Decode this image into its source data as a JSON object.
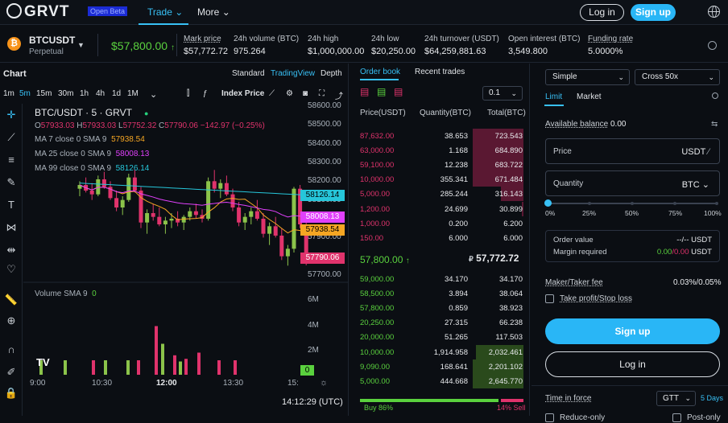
{
  "header": {
    "logo_text": "GRVT",
    "beta_badge": "Open Beta",
    "nav": [
      {
        "label": "Trade"
      },
      {
        "label": "More"
      }
    ],
    "login_label": "Log in",
    "signup_label": "Sign up"
  },
  "ticker": {
    "symbol": "BTCUSDT",
    "market_type": "Perpetual",
    "last_price": "$57,800.00",
    "stats": [
      {
        "label": "Mark price",
        "value": "$57,772.72"
      },
      {
        "label": "24h volume (BTC)",
        "value": "975.264"
      },
      {
        "label": "24h high",
        "value": "$1,000,000.00"
      },
      {
        "label": "24h low",
        "value": "$20,250.00"
      },
      {
        "label": "24h turnover (USDT)",
        "value": "$64,259,881.63"
      },
      {
        "label": "Open interest (BTC)",
        "value": "3,549.800"
      },
      {
        "label": "Funding rate",
        "value": "5.0000%"
      }
    ]
  },
  "chart_panel": {
    "title": "Chart",
    "views": [
      "Standard",
      "TradingView",
      "Depth"
    ],
    "active_view": "TradingView",
    "timeframes": [
      "1m",
      "5m",
      "15m",
      "30m",
      "1h",
      "4h",
      "1d",
      "1M"
    ],
    "active_timeframe": "5m",
    "index_price_label": "Index Price",
    "instrument_line": "BTC/USDT · 5 · GRVT",
    "ohlc": {
      "o": "57933.03",
      "h": "57933.03",
      "l": "57752.32",
      "c": "57790.06",
      "change": "−142.97 (−0.25%)"
    },
    "ma_lines": [
      {
        "label": "MA 7 close 0 SMA 9",
        "value": "57938.54",
        "color": "#f5a623"
      },
      {
        "label": "MA 25 close 0 SMA 9",
        "value": "58008.13",
        "color": "#e040fb"
      },
      {
        "label": "MA 99 close 0 SMA 9",
        "value": "58126.14",
        "color": "#26c6da"
      }
    ],
    "price_axis": [
      "58600.00",
      "58500.00",
      "58400.00",
      "58300.00",
      "58200.00",
      "58100.00",
      "58000.00",
      "57900.00",
      "57800.00",
      "57700.00"
    ],
    "price_tags": [
      {
        "value": "58126.14",
        "color": "#26c6da"
      },
      {
        "value": "58008.13",
        "color": "#e040fb"
      },
      {
        "value": "57938.54",
        "color": "#f5a623"
      },
      {
        "value": "57790.06",
        "color": "#e0336c"
      }
    ],
    "volume_label": "Volume SMA 9",
    "volume_value": "0",
    "volume_axis": [
      "6M",
      "4M",
      "2M"
    ],
    "volume_tag": "0",
    "time_axis": [
      "9:00",
      "10:30",
      "12:00",
      "13:30",
      "15:"
    ],
    "clock": "14:12:29 (UTC)",
    "tv_logo": "TV"
  },
  "chart_data": {
    "type": "candlestick",
    "title": "BTC/USDT · 5 · GRVT",
    "ylim": [
      57700,
      58600
    ],
    "ohlc_last": {
      "open": 57933.03,
      "high": 57933.03,
      "low": 57752.32,
      "close": 57790.06
    },
    "moving_averages": [
      {
        "name": "MA 7",
        "last": 57938.54
      },
      {
        "name": "MA 25",
        "last": 58008.13
      },
      {
        "name": "MA 99",
        "last": 58126.14
      }
    ],
    "candles": [
      [
        58160,
        58200,
        58120,
        58180
      ],
      [
        58180,
        58220,
        58140,
        58150
      ],
      [
        58150,
        58190,
        58100,
        58130
      ],
      [
        58130,
        58230,
        58120,
        58210
      ],
      [
        58210,
        58250,
        58160,
        58170
      ],
      [
        58170,
        58200,
        58100,
        58110
      ],
      [
        58110,
        58150,
        58040,
        58060
      ],
      [
        58060,
        58120,
        58020,
        58100
      ],
      [
        58100,
        58240,
        58090,
        58220
      ],
      [
        58220,
        58260,
        58140,
        58150
      ],
      [
        58150,
        58170,
        57950,
        57980
      ],
      [
        57980,
        58050,
        57920,
        58030
      ],
      [
        58030,
        58080,
        57990,
        58010
      ],
      [
        58010,
        58060,
        57960,
        57970
      ],
      [
        57970,
        58010,
        57920,
        57990
      ],
      [
        57990,
        58030,
        57950,
        58000
      ],
      [
        58000,
        58040,
        57960,
        57980
      ],
      [
        57980,
        58020,
        57940,
        58010
      ],
      [
        58010,
        58060,
        57990,
        58040
      ],
      [
        58040,
        58080,
        58000,
        58020
      ],
      [
        58020,
        58050,
        57980,
        58000
      ],
      [
        58000,
        58220,
        57990,
        58200
      ],
      [
        58200,
        58260,
        58140,
        58160
      ],
      [
        58160,
        58210,
        58110,
        58190
      ],
      [
        58190,
        58230,
        58120,
        58130
      ],
      [
        58130,
        58160,
        58040,
        58060
      ],
      [
        58060,
        58090,
        57960,
        57980
      ],
      [
        57980,
        58030,
        57940,
        58010
      ],
      [
        58010,
        58060,
        57970,
        58040
      ],
      [
        58040,
        58100,
        57990,
        58000
      ],
      [
        58000,
        58030,
        57900,
        57920
      ],
      [
        57920,
        57980,
        57860,
        57960
      ],
      [
        57960,
        58010,
        57900,
        57910
      ],
      [
        57910,
        57950,
        57780,
        57800
      ],
      [
        57800,
        57860,
        57750,
        57840
      ],
      [
        57840,
        58170,
        57820,
        58160
      ],
      [
        58160,
        58180,
        57950,
        57970
      ],
      [
        57970,
        57990,
        57752,
        57790
      ]
    ],
    "volume_axis_ticks": [
      "2M",
      "4M",
      "6M"
    ]
  },
  "orderbook": {
    "tabs": [
      "Order book",
      "Recent trades"
    ],
    "active_tab": "Order book",
    "precision": "0.1",
    "columns": [
      "Price(USDT)",
      "Quantity(BTC)",
      "Total(BTC)"
    ],
    "asks": [
      {
        "price": "87,632.00",
        "qty": "38.653",
        "total": "723.543",
        "depth": 0.31
      },
      {
        "price": "63,000.00",
        "qty": "1.168",
        "total": "684.890",
        "depth": 0.31
      },
      {
        "price": "59,100.00",
        "qty": "12.238",
        "total": "683.722",
        "depth": 0.31
      },
      {
        "price": "10,000.00",
        "qty": "355.341",
        "total": "671.484",
        "depth": 0.31
      },
      {
        "price": "5,000.00",
        "qty": "285.244",
        "total": "316.143",
        "depth": 0.14
      },
      {
        "price": "1,200.00",
        "qty": "24.699",
        "total": "30.899",
        "depth": 0.01
      },
      {
        "price": "1,000.00",
        "qty": "0.200",
        "total": "6.200",
        "depth": 0.0
      },
      {
        "price": "150.00",
        "qty": "6.000",
        "total": "6.000",
        "depth": 0.0
      }
    ],
    "mid_price": "57,800.00",
    "mark_price": "57,772.72",
    "bids": [
      {
        "price": "59,000.00",
        "qty": "34.170",
        "total": "34.170",
        "depth": 0.0
      },
      {
        "price": "58,500.00",
        "qty": "3.894",
        "total": "38.064",
        "depth": 0.0
      },
      {
        "price": "57,800.00",
        "qty": "0.859",
        "total": "38.923",
        "depth": 0.0
      },
      {
        "price": "20,250.00",
        "qty": "27.315",
        "total": "66.238",
        "depth": 0.0
      },
      {
        "price": "20,000.00",
        "qty": "51.265",
        "total": "117.503",
        "depth": 0.0
      },
      {
        "price": "10,000.00",
        "qty": "1,914.958",
        "total": "2,032.461",
        "depth": 0.29
      },
      {
        "price": "9,090.00",
        "qty": "168.641",
        "total": "2,201.102",
        "depth": 0.31
      },
      {
        "price": "5,000.00",
        "qty": "444.668",
        "total": "2,645.770",
        "depth": 0.31
      }
    ],
    "buy_pct_value": 86,
    "buy_pct": "Buy 86%",
    "sell_pct": "14% Sell"
  },
  "order_form": {
    "mode": "Simple",
    "margin": "Cross 50x",
    "tabs": [
      "Limit",
      "Market"
    ],
    "active_tab": "Limit",
    "available_label": "Available balance",
    "available_value": "0.00",
    "price_label": "Price",
    "price_unit": "USDT",
    "quantity_label": "Quantity",
    "quantity_unit": "BTC",
    "slider_value": 0,
    "slider_marks": [
      "0%",
      "25%",
      "50%",
      "75%",
      "100%"
    ],
    "order_value_label": "Order value",
    "order_value": "--/-- USDT",
    "margin_label": "Margin required",
    "margin_value_green": "0.00",
    "margin_value_red": "/0.00",
    "margin_unit": "USDT",
    "fee_label": "Maker/Taker fee",
    "fee_value": "0.03%/0.05%",
    "tpsl_label": "Take profit/Stop loss",
    "signup_label": "Sign up",
    "login_label": "Log in",
    "tif_label": "Time in force",
    "tif_value": "GTT",
    "tif_days": "5 Days",
    "reduce_only_label": "Reduce-only",
    "post_only_label": "Post-only"
  }
}
